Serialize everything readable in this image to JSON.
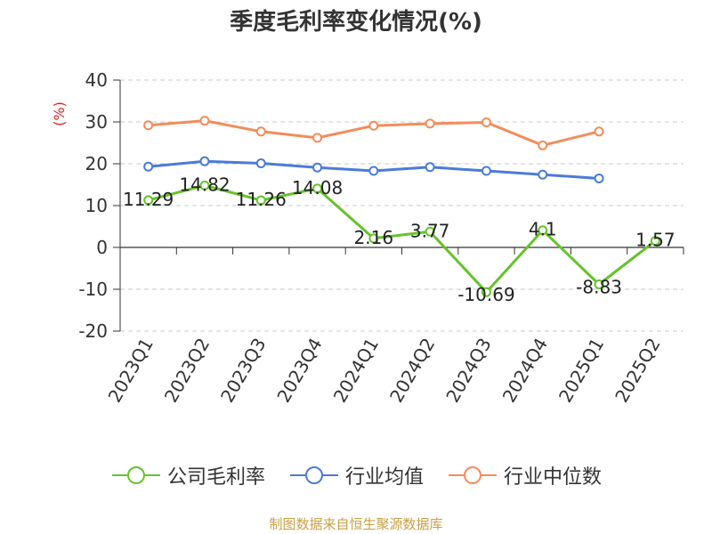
{
  "chart_data": {
    "type": "line",
    "title": "季度毛利率变化情况(%)",
    "ylabel": "(%)",
    "ylim": [
      -20,
      40
    ],
    "yticks": [
      40,
      30,
      20,
      10,
      0,
      -10,
      -20
    ],
    "grid": true,
    "legend_position": "bottom",
    "categories": [
      "2023Q1",
      "2023Q2",
      "2023Q3",
      "2023Q4",
      "2024Q1",
      "2024Q2",
      "2024Q3",
      "2024Q4",
      "2025Q1",
      "2025Q2"
    ],
    "series": [
      {
        "name": "公司毛利率",
        "color": "#66c22b",
        "labeled": true,
        "values": [
          11.29,
          14.82,
          11.26,
          14.08,
          2.16,
          3.77,
          -10.69,
          4.1,
          -8.83,
          1.57
        ],
        "labels": [
          "11.29",
          "14.82",
          "11.26",
          "14.08",
          "2.16",
          "3.77",
          "-10.69",
          "4.1",
          "-8.83",
          "1.57"
        ]
      },
      {
        "name": "行业均值",
        "color": "#4b7bd8",
        "labeled": false,
        "values": [
          19.3,
          20.6,
          20.1,
          19.1,
          18.3,
          19.2,
          18.3,
          17.4,
          16.5,
          null
        ]
      },
      {
        "name": "行业中位数",
        "color": "#f28c5b",
        "labeled": false,
        "values": [
          29.2,
          30.3,
          27.7,
          26.2,
          29.1,
          29.6,
          29.9,
          24.4,
          27.7,
          null
        ]
      }
    ]
  },
  "source": "制图数据来自恒生聚源数据库"
}
